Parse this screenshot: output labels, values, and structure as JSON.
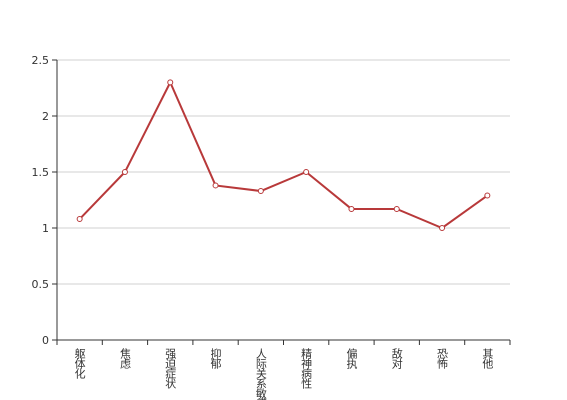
{
  "chart_data": {
    "type": "line",
    "categories": [
      "躯体化",
      "焦虑",
      "强迫症状",
      "抑郁",
      "人际关系敏感",
      "精神病性",
      "偏执",
      "敌对",
      "恐怖",
      "其他"
    ],
    "series": [
      {
        "color": "#b8393a",
        "values": [
          1.08,
          1.5,
          2.3,
          1.38,
          1.33,
          1.5,
          1.17,
          1.17,
          1.0,
          1.29
        ]
      }
    ],
    "ylim": [
      0,
      2.5
    ],
    "yticks": [
      0,
      0.5,
      1,
      1.5,
      2,
      2.5
    ],
    "grid": true
  }
}
